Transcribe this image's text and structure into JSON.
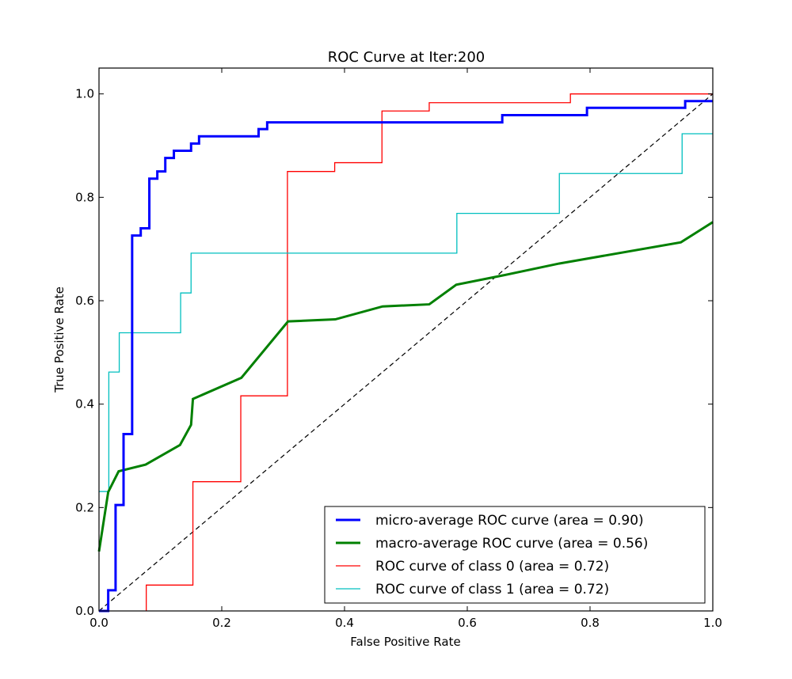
{
  "chart_data": {
    "type": "line",
    "title": "ROC Curve at Iter:200",
    "xlabel": "False Positive Rate",
    "ylabel": "True Positive Rate",
    "xlim": [
      0.0,
      1.0
    ],
    "ylim": [
      0.0,
      1.05
    ],
    "xticks": [
      "0.0",
      "0.2",
      "0.4",
      "0.6",
      "0.8",
      "1.0"
    ],
    "yticks": [
      "0.0",
      "0.2",
      "0.4",
      "0.6",
      "0.8",
      "1.0"
    ],
    "grid": false,
    "legend_position": "lower-right",
    "series": [
      {
        "name": "micro-average ROC curve (area = 0.90)",
        "color": "#0000ff",
        "style": "solid-thick",
        "points": [
          [
            0.0,
            0.0
          ],
          [
            0.015,
            0.0
          ],
          [
            0.015,
            0.04
          ],
          [
            0.027,
            0.04
          ],
          [
            0.027,
            0.205
          ],
          [
            0.04,
            0.205
          ],
          [
            0.04,
            0.342
          ],
          [
            0.054,
            0.342
          ],
          [
            0.054,
            0.726
          ],
          [
            0.068,
            0.726
          ],
          [
            0.068,
            0.74
          ],
          [
            0.082,
            0.74
          ],
          [
            0.082,
            0.836
          ],
          [
            0.095,
            0.836
          ],
          [
            0.095,
            0.85
          ],
          [
            0.108,
            0.85
          ],
          [
            0.108,
            0.876
          ],
          [
            0.122,
            0.876
          ],
          [
            0.122,
            0.89
          ],
          [
            0.15,
            0.89
          ],
          [
            0.15,
            0.904
          ],
          [
            0.163,
            0.904
          ],
          [
            0.163,
            0.918
          ],
          [
            0.26,
            0.918
          ],
          [
            0.26,
            0.932
          ],
          [
            0.274,
            0.932
          ],
          [
            0.274,
            0.945
          ],
          [
            0.657,
            0.945
          ],
          [
            0.657,
            0.959
          ],
          [
            0.795,
            0.959
          ],
          [
            0.795,
            0.973
          ],
          [
            0.955,
            0.973
          ],
          [
            0.955,
            0.986
          ],
          [
            1.0,
            0.986
          ]
        ]
      },
      {
        "name": "macro-average ROC curve (area = 0.56)",
        "color": "#008000",
        "style": "solid-thick",
        "points": [
          [
            0.0,
            0.115
          ],
          [
            0.015,
            0.23
          ],
          [
            0.032,
            0.27
          ],
          [
            0.076,
            0.283
          ],
          [
            0.132,
            0.321
          ],
          [
            0.15,
            0.36
          ],
          [
            0.153,
            0.41
          ],
          [
            0.232,
            0.451
          ],
          [
            0.308,
            0.56
          ],
          [
            0.385,
            0.564
          ],
          [
            0.462,
            0.589
          ],
          [
            0.538,
            0.593
          ],
          [
            0.582,
            0.631
          ],
          [
            0.658,
            0.649
          ],
          [
            0.75,
            0.672
          ],
          [
            0.948,
            0.713
          ],
          [
            1.0,
            0.752
          ]
        ]
      },
      {
        "name": "ROC curve of class 0 (area = 0.72)",
        "color": "#ff0000",
        "style": "solid-thin",
        "points": [
          [
            0.077,
            0.0
          ],
          [
            0.077,
            0.05
          ],
          [
            0.153,
            0.05
          ],
          [
            0.153,
            0.25
          ],
          [
            0.231,
            0.25
          ],
          [
            0.231,
            0.416
          ],
          [
            0.307,
            0.416
          ],
          [
            0.307,
            0.85
          ],
          [
            0.384,
            0.85
          ],
          [
            0.384,
            0.867
          ],
          [
            0.461,
            0.867
          ],
          [
            0.461,
            0.967
          ],
          [
            0.538,
            0.967
          ],
          [
            0.538,
            0.983
          ],
          [
            0.768,
            0.983
          ],
          [
            0.768,
            1.0
          ],
          [
            1.0,
            1.0
          ]
        ]
      },
      {
        "name": "ROC curve of class 1 (area = 0.72)",
        "color": "#00bfbf",
        "style": "solid-thin",
        "points": [
          [
            0.0,
            0.231
          ],
          [
            0.016,
            0.231
          ],
          [
            0.016,
            0.462
          ],
          [
            0.033,
            0.462
          ],
          [
            0.033,
            0.538
          ],
          [
            0.133,
            0.538
          ],
          [
            0.133,
            0.615
          ],
          [
            0.15,
            0.615
          ],
          [
            0.15,
            0.692
          ],
          [
            0.583,
            0.692
          ],
          [
            0.583,
            0.769
          ],
          [
            0.75,
            0.769
          ],
          [
            0.75,
            0.846
          ],
          [
            0.95,
            0.846
          ],
          [
            0.95,
            0.923
          ],
          [
            1.0,
            0.923
          ]
        ]
      }
    ],
    "reference_line": {
      "color": "#000000",
      "style": "dashed",
      "points": [
        [
          0.0,
          0.0
        ],
        [
          1.0,
          1.0
        ]
      ]
    }
  }
}
